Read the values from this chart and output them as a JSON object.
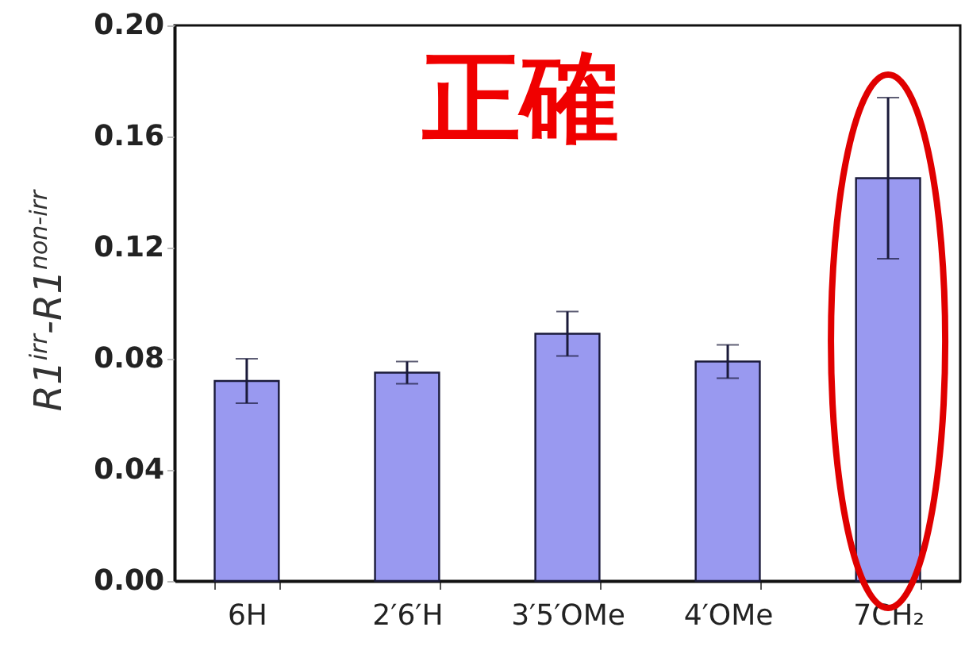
{
  "chart_data": {
    "type": "bar",
    "ylabel": "R1$^{irr}$-R1$^{non-irr}$",
    "annotations": [
      "正確"
    ],
    "categories": [
      "6H",
      "2′6′H",
      "3′5′OMe",
      "4′OMe",
      "7CH₂"
    ],
    "values": [
      0.072,
      0.075,
      0.089,
      0.079,
      0.145
    ],
    "errors": [
      0.008,
      0.004,
      0.008,
      0.006,
      0.029
    ],
    "color": "#9999f0",
    "ylim": [
      0,
      0.2
    ],
    "yticks": [
      {
        "value": 0,
        "label": "0.00"
      },
      {
        "value": 0.04,
        "label": "0.04"
      },
      {
        "value": 0.08,
        "label": "0.08"
      },
      {
        "value": 0.12,
        "label": "0.12"
      },
      {
        "value": 0.16,
        "label": "0.16"
      },
      {
        "value": 0.2,
        "label": "0.20"
      }
    ],
    "grid": false
  }
}
